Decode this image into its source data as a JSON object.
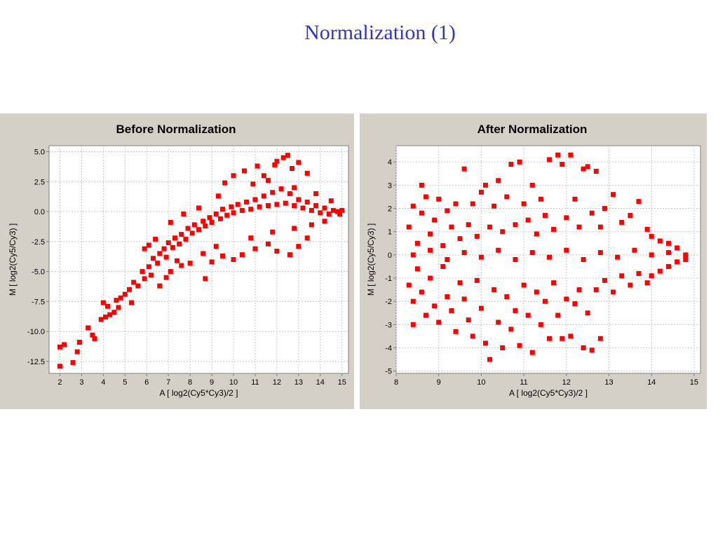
{
  "slide": {
    "title": "Normalization (1)"
  },
  "colors": {
    "point": "#ff0000",
    "title": "#3333cc",
    "panel": "#d4d0c8"
  },
  "chart_data": [
    {
      "type": "scatter",
      "title": "Before Normalization",
      "xlabel": "A [ log2(Cy5*Cy3)/2 ]",
      "ylabel": "M [ log2(Cy5/Cy3) ]",
      "xlim": [
        1.5,
        15.3
      ],
      "ylim": [
        -13.5,
        5.5
      ],
      "xticks": [
        2,
        3,
        4,
        5,
        6,
        7,
        8,
        9,
        10,
        11,
        12,
        13,
        14,
        15
      ],
      "yticks": [
        5.0,
        2.5,
        0.0,
        -2.5,
        -5.0,
        -7.5,
        -10.0,
        -12.5
      ],
      "ytick_labels": [
        "5.0",
        "2.5",
        "0.0",
        "-2.5",
        "-5.0",
        "-7.5",
        "-10.0",
        "-12.5"
      ],
      "grid": true,
      "series": [
        {
          "color": "#ff0000",
          "points": [
            [
              2.0,
              -12.9
            ],
            [
              2.2,
              -11.1
            ],
            [
              2.0,
              -11.3
            ],
            [
              2.6,
              -12.6
            ],
            [
              2.8,
              -11.7
            ],
            [
              2.9,
              -10.9
            ],
            [
              3.3,
              -9.7
            ],
            [
              3.5,
              -10.3
            ],
            [
              3.6,
              -10.6
            ],
            [
              3.9,
              -9.0
            ],
            [
              4.1,
              -8.8
            ],
            [
              4.3,
              -8.6
            ],
            [
              4.0,
              -7.6
            ],
            [
              4.2,
              -7.9
            ],
            [
              4.5,
              -8.4
            ],
            [
              4.6,
              -7.4
            ],
            [
              4.7,
              -8.0
            ],
            [
              4.8,
              -7.2
            ],
            [
              5.0,
              -6.9
            ],
            [
              5.2,
              -6.5
            ],
            [
              5.3,
              -7.6
            ],
            [
              5.4,
              -5.9
            ],
            [
              5.6,
              -6.2
            ],
            [
              5.8,
              -5.0
            ],
            [
              5.9,
              -5.6
            ],
            [
              6.1,
              -4.6
            ],
            [
              6.2,
              -5.3
            ],
            [
              6.3,
              -3.9
            ],
            [
              6.5,
              -4.3
            ],
            [
              6.6,
              -3.5
            ],
            [
              6.8,
              -3.1
            ],
            [
              6.9,
              -3.8
            ],
            [
              7.0,
              -2.6
            ],
            [
              7.2,
              -3.0
            ],
            [
              7.3,
              -2.2
            ],
            [
              7.5,
              -2.7
            ],
            [
              7.6,
              -1.9
            ],
            [
              7.8,
              -2.3
            ],
            [
              7.9,
              -1.4
            ],
            [
              8.1,
              -1.8
            ],
            [
              8.2,
              -1.1
            ],
            [
              8.4,
              -1.5
            ],
            [
              8.6,
              -0.8
            ],
            [
              8.7,
              -1.2
            ],
            [
              8.9,
              -0.5
            ],
            [
              9.0,
              -0.9
            ],
            [
              9.2,
              -0.2
            ],
            [
              9.4,
              -0.6
            ],
            [
              9.5,
              0.2
            ],
            [
              9.7,
              -0.3
            ],
            [
              9.9,
              0.4
            ],
            [
              10.0,
              -0.1
            ],
            [
              10.2,
              0.6
            ],
            [
              10.4,
              0.1
            ],
            [
              10.6,
              0.8
            ],
            [
              10.8,
              0.2
            ],
            [
              11.0,
              1.0
            ],
            [
              11.2,
              0.4
            ],
            [
              11.4,
              1.3
            ],
            [
              11.6,
              0.5
            ],
            [
              11.8,
              1.6
            ],
            [
              12.0,
              0.6
            ],
            [
              12.2,
              1.9
            ],
            [
              12.4,
              0.7
            ],
            [
              12.6,
              1.5
            ],
            [
              12.8,
              0.5
            ],
            [
              13.0,
              1.0
            ],
            [
              13.2,
              0.3
            ],
            [
              13.4,
              0.8
            ],
            [
              13.6,
              0.1
            ],
            [
              13.8,
              0.5
            ],
            [
              14.0,
              -0.1
            ],
            [
              14.2,
              0.3
            ],
            [
              14.4,
              -0.2
            ],
            [
              14.6,
              0.1
            ],
            [
              14.8,
              0.0
            ],
            [
              15.0,
              0.1
            ],
            [
              14.9,
              -0.2
            ],
            [
              12.3,
              4.5
            ],
            [
              12.5,
              4.7
            ],
            [
              12.0,
              4.2
            ],
            [
              11.9,
              3.9
            ],
            [
              11.1,
              3.8
            ],
            [
              10.5,
              3.4
            ],
            [
              13.0,
              4.1
            ],
            [
              12.7,
              3.6
            ],
            [
              10.0,
              3.0
            ],
            [
              9.6,
              2.4
            ],
            [
              13.4,
              3.2
            ],
            [
              11.4,
              3.0
            ],
            [
              8.6,
              -3.5
            ],
            [
              9.0,
              -4.2
            ],
            [
              8.7,
              -5.6
            ],
            [
              9.5,
              -3.7
            ],
            [
              10.0,
              -4.0
            ],
            [
              10.4,
              -3.6
            ],
            [
              11.0,
              -3.1
            ],
            [
              11.6,
              -2.7
            ],
            [
              12.0,
              -3.3
            ],
            [
              12.6,
              -3.6
            ],
            [
              13.0,
              -2.9
            ],
            [
              13.4,
              -2.2
            ],
            [
              7.6,
              -4.5
            ],
            [
              8.0,
              -4.3
            ],
            [
              7.1,
              -5.0
            ],
            [
              6.9,
              -5.5
            ],
            [
              7.4,
              -4.1
            ],
            [
              6.6,
              -6.2
            ],
            [
              9.2,
              -2.9
            ],
            [
              10.8,
              -2.2
            ],
            [
              11.8,
              -1.7
            ],
            [
              12.8,
              -1.4
            ],
            [
              13.6,
              -1.1
            ],
            [
              14.2,
              -0.8
            ],
            [
              6.4,
              -2.3
            ],
            [
              7.1,
              -0.9
            ],
            [
              7.7,
              -0.2
            ],
            [
              8.4,
              0.3
            ],
            [
              5.9,
              -3.1
            ],
            [
              6.1,
              -2.8
            ],
            [
              10.9,
              2.3
            ],
            [
              11.6,
              2.6
            ],
            [
              12.8,
              2.0
            ],
            [
              13.8,
              1.5
            ],
            [
              14.5,
              0.9
            ],
            [
              9.3,
              1.3
            ]
          ]
        }
      ]
    },
    {
      "type": "scatter",
      "title": "After Normalization",
      "xlabel": "A [ log2(Cy5*Cy3)/2 ]",
      "ylabel": "M [ log2(Cy5/Cy3) ]",
      "xlim": [
        8.0,
        15.15
      ],
      "ylim": [
        -5.1,
        4.7
      ],
      "xticks": [
        8,
        9,
        10,
        11,
        12,
        13,
        14,
        15
      ],
      "yticks": [
        4,
        3,
        2,
        1,
        0,
        -1,
        -2,
        -3,
        -4,
        -5
      ],
      "ytick_labels": [
        "4",
        "3",
        "2",
        "1",
        "0",
        "-1",
        "-2",
        "-3",
        "-4",
        "-5"
      ],
      "grid": true,
      "series": [
        {
          "color": "#ff0000",
          "points": [
            [
              8.3,
              1.2
            ],
            [
              8.3,
              -1.3
            ],
            [
              8.4,
              2.1
            ],
            [
              8.4,
              -2.0
            ],
            [
              8.5,
              0.5
            ],
            [
              8.5,
              -0.6
            ],
            [
              8.6,
              1.8
            ],
            [
              8.6,
              -1.6
            ],
            [
              8.7,
              2.5
            ],
            [
              8.7,
              -2.6
            ],
            [
              8.8,
              0.9
            ],
            [
              8.8,
              -1.0
            ],
            [
              8.9,
              1.5
            ],
            [
              8.9,
              -2.2
            ],
            [
              9.0,
              2.4
            ],
            [
              9.0,
              -2.9
            ],
            [
              9.1,
              0.4
            ],
            [
              9.1,
              -0.5
            ],
            [
              9.2,
              1.9
            ],
            [
              9.2,
              -1.8
            ],
            [
              9.3,
              1.2
            ],
            [
              9.3,
              -2.4
            ],
            [
              9.4,
              2.2
            ],
            [
              9.4,
              -3.3
            ],
            [
              9.5,
              0.7
            ],
            [
              9.5,
              -1.2
            ],
            [
              9.6,
              3.7
            ],
            [
              9.6,
              -1.9
            ],
            [
              9.7,
              1.3
            ],
            [
              9.7,
              -2.8
            ],
            [
              9.8,
              2.2
            ],
            [
              9.8,
              -3.5
            ],
            [
              9.9,
              0.8
            ],
            [
              9.9,
              -1.1
            ],
            [
              10.0,
              2.7
            ],
            [
              10.0,
              -2.3
            ],
            [
              10.1,
              3.0
            ],
            [
              10.1,
              -3.8
            ],
            [
              10.2,
              1.2
            ],
            [
              10.2,
              -4.5
            ],
            [
              10.3,
              2.1
            ],
            [
              10.3,
              -1.5
            ],
            [
              10.4,
              3.2
            ],
            [
              10.4,
              -2.9
            ],
            [
              10.5,
              1.0
            ],
            [
              10.5,
              -4.0
            ],
            [
              10.6,
              2.5
            ],
            [
              10.6,
              -1.8
            ],
            [
              10.7,
              3.9
            ],
            [
              10.7,
              -3.2
            ],
            [
              10.8,
              1.3
            ],
            [
              10.8,
              -2.4
            ],
            [
              10.9,
              4.0
            ],
            [
              10.9,
              -3.9
            ],
            [
              11.0,
              2.2
            ],
            [
              11.0,
              -1.3
            ],
            [
              11.1,
              1.5
            ],
            [
              11.1,
              -2.6
            ],
            [
              11.2,
              3.0
            ],
            [
              11.2,
              -4.2
            ],
            [
              11.3,
              0.9
            ],
            [
              11.3,
              -1.6
            ],
            [
              11.4,
              2.4
            ],
            [
              11.4,
              -3.0
            ],
            [
              11.5,
              1.7
            ],
            [
              11.5,
              -2.0
            ],
            [
              11.6,
              4.1
            ],
            [
              11.6,
              -3.6
            ],
            [
              11.7,
              1.1
            ],
            [
              11.7,
              -1.2
            ],
            [
              11.8,
              4.3
            ],
            [
              11.8,
              -2.6
            ],
            [
              11.9,
              3.9
            ],
            [
              11.9,
              -3.6
            ],
            [
              12.0,
              1.6
            ],
            [
              12.0,
              -1.9
            ],
            [
              12.1,
              4.3
            ],
            [
              12.1,
              -3.5
            ],
            [
              12.2,
              2.4
            ],
            [
              12.2,
              -2.1
            ],
            [
              12.3,
              1.2
            ],
            [
              12.3,
              -1.5
            ],
            [
              12.4,
              3.7
            ],
            [
              12.4,
              -4.0
            ],
            [
              12.5,
              3.8
            ],
            [
              12.5,
              -2.5
            ],
            [
              12.6,
              1.8
            ],
            [
              12.6,
              -4.1
            ],
            [
              12.7,
              3.6
            ],
            [
              12.7,
              -1.5
            ],
            [
              12.8,
              1.2
            ],
            [
              12.8,
              -3.6
            ],
            [
              12.9,
              2.0
            ],
            [
              12.9,
              -1.1
            ],
            [
              13.1,
              2.6
            ],
            [
              13.1,
              -1.6
            ],
            [
              13.3,
              1.4
            ],
            [
              13.3,
              -0.9
            ],
            [
              13.5,
              1.7
            ],
            [
              13.5,
              -1.3
            ],
            [
              13.7,
              2.3
            ],
            [
              13.7,
              -0.8
            ],
            [
              13.9,
              1.1
            ],
            [
              13.9,
              -1.2
            ],
            [
              14.0,
              0.8
            ],
            [
              14.0,
              -0.9
            ],
            [
              14.2,
              0.6
            ],
            [
              14.2,
              -0.7
            ],
            [
              14.4,
              0.5
            ],
            [
              14.4,
              -0.5
            ],
            [
              14.6,
              0.3
            ],
            [
              14.6,
              -0.3
            ],
            [
              14.8,
              0.0
            ],
            [
              14.8,
              -0.2
            ],
            [
              8.4,
              0.0
            ],
            [
              8.8,
              0.2
            ],
            [
              9.2,
              -0.2
            ],
            [
              9.6,
              0.1
            ],
            [
              10.0,
              -0.1
            ],
            [
              10.4,
              0.2
            ],
            [
              10.8,
              -0.2
            ],
            [
              11.2,
              0.1
            ],
            [
              11.6,
              -0.1
            ],
            [
              12.0,
              0.2
            ],
            [
              12.4,
              -0.2
            ],
            [
              12.8,
              0.1
            ],
            [
              13.2,
              -0.1
            ],
            [
              13.6,
              0.2
            ],
            [
              14.0,
              0.0
            ],
            [
              14.4,
              0.1
            ],
            [
              8.6,
              3.0
            ],
            [
              8.4,
              -3.0
            ]
          ]
        }
      ]
    }
  ]
}
